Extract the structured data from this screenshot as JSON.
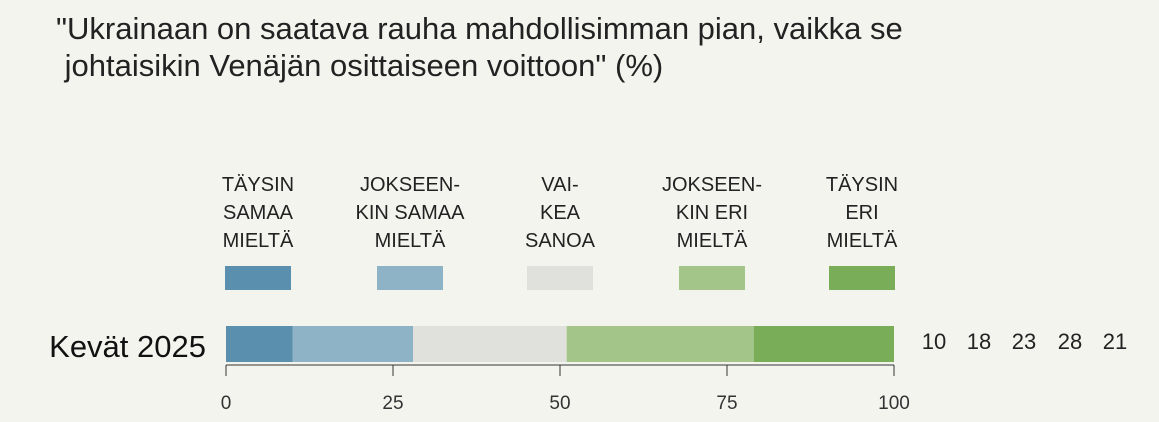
{
  "chart_data": {
    "type": "bar",
    "orientation": "horizontal-stacked",
    "title_lines": [
      "\"Ukrainaan on saatava rauha mahdollisimman pian, vaikka se",
      " johtaisikin Venäjän osittaiseen voittoon\" (%)"
    ],
    "categories": [
      "Kevät 2025"
    ],
    "series": [
      {
        "name": "TÄYSIN SAMAA MIELTÄ",
        "label_lines": [
          "TÄYSIN",
          "SAMAA",
          "MIELTÄ"
        ],
        "values": [
          10
        ],
        "color": "#5a8fae"
      },
      {
        "name": "JOKSEEN-KIN SAMAA MIELTÄ",
        "label_lines": [
          "JOKSEEN-",
          "KIN SAMAA",
          "MIELTÄ"
        ],
        "values": [
          18
        ],
        "color": "#8fb3c6"
      },
      {
        "name": "VAI-KEA SANOA",
        "label_lines": [
          "VAI-",
          "KEA",
          "SANOA"
        ],
        "values": [
          23
        ],
        "color": "#e0e0dc"
      },
      {
        "name": "JOKSEEN-KIN ERI MIELTÄ",
        "label_lines": [
          "JOKSEEN-",
          "KIN ERI",
          "MIELTÄ"
        ],
        "values": [
          28
        ],
        "color": "#a3c589"
      },
      {
        "name": "TÄYSIN ERI MIELTÄ",
        "label_lines": [
          "TÄYSIN",
          "ERI",
          "MIELTÄ"
        ],
        "values": [
          21
        ],
        "color": "#79ad57"
      }
    ],
    "value_labels": [
      "10",
      "18",
      "23",
      "28",
      "21"
    ],
    "xlim": [
      0,
      100
    ],
    "xticks": [
      0,
      25,
      50,
      75,
      100
    ],
    "xtick_labels": [
      "0",
      "25",
      "50",
      "75",
      "100"
    ],
    "grid": false,
    "legend": "top"
  }
}
